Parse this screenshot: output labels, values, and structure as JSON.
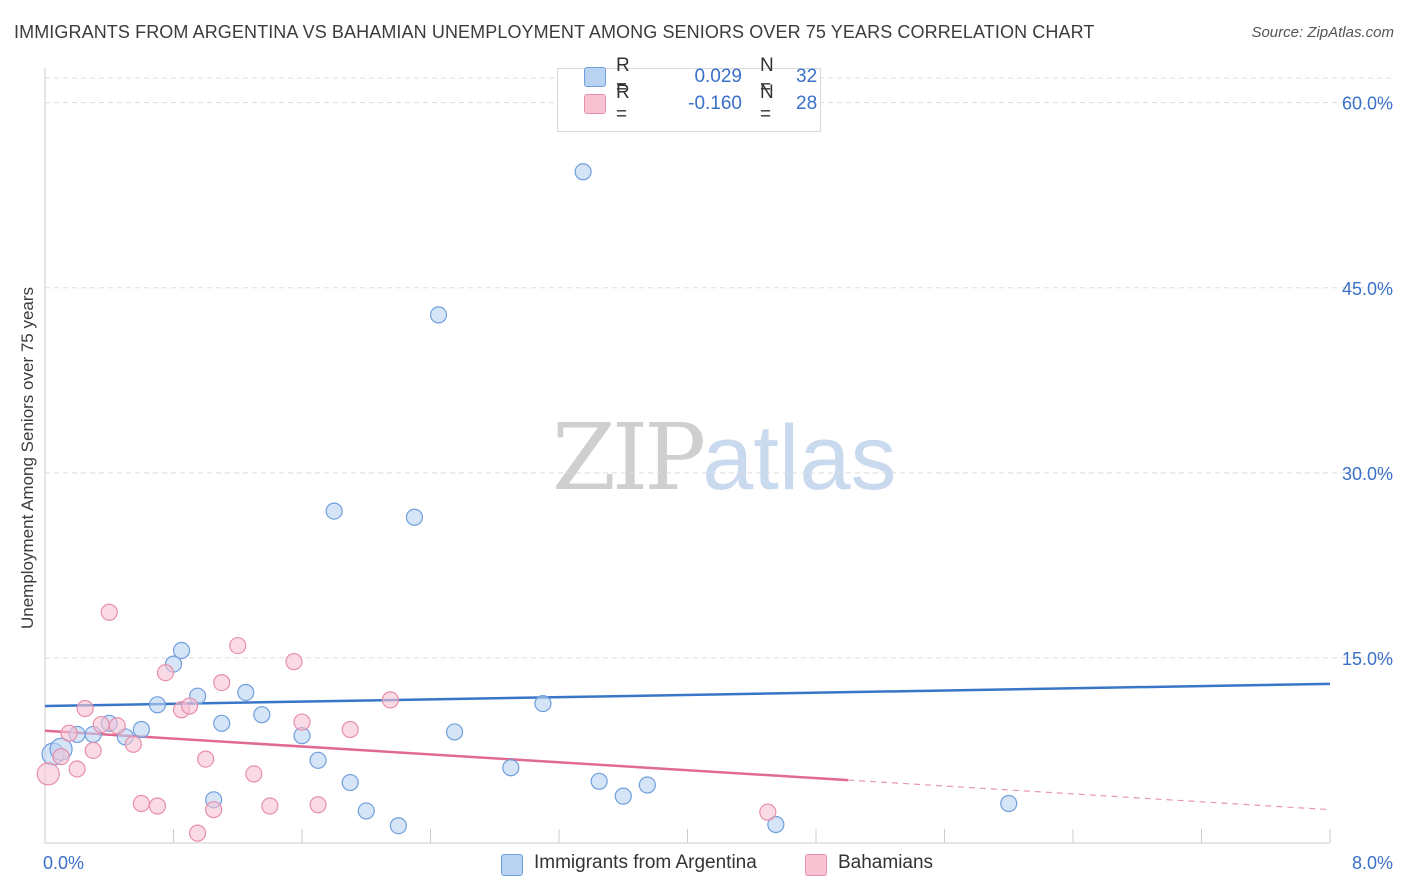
{
  "header": {
    "title": "IMMIGRANTS FROM ARGENTINA VS BAHAMIAN UNEMPLOYMENT AMONG SENIORS OVER 75 YEARS CORRELATION CHART",
    "source": "Source: ZipAtlas.com"
  },
  "watermark": {
    "zip": "ZIP",
    "atlas": "atlas"
  },
  "legend": {
    "series": [
      {
        "r_label": "R =",
        "r_value": "0.029",
        "n_label": "N =",
        "n_value": "32"
      },
      {
        "r_label": "R =",
        "r_value": "-0.160",
        "n_label": "N =",
        "n_value": "28"
      }
    ]
  },
  "colors": {
    "blue_fill": "#b9d2f2",
    "blue_stroke": "#6f9fdc",
    "blue_line": "#3a76c8",
    "pink_fill": "#f7c3d3",
    "pink_stroke": "#e78fab",
    "pink_line": "#e06a93",
    "grid": "#dddddd",
    "tick_label": "#3a70c8"
  },
  "chart_data": {
    "type": "scatter",
    "title": "IMMIGRANTS FROM ARGENTINA VS BAHAMIAN UNEMPLOYMENT AMONG SENIORS OVER 75 YEARS CORRELATION CHART",
    "xlabel": "",
    "ylabel": "Unemployment Among Seniors over 75 years",
    "xlim": [
      0,
      8
    ],
    "ylim": [
      0,
      62
    ],
    "x_tick_labels": [
      "0.0%",
      "8.0%"
    ],
    "y_ticks": [
      15,
      30,
      45,
      60
    ],
    "y_tick_labels": [
      "15.0%",
      "30.0%",
      "45.0%",
      "60.0%"
    ],
    "grid": true,
    "legend_position": "top-center",
    "series": [
      {
        "name": "Immigrants from Argentina",
        "color": "blue",
        "R": 0.029,
        "N": 32,
        "trend": {
          "x": [
            0,
            8
          ],
          "y": [
            11.1,
            12.9
          ],
          "dashed_after": null
        },
        "points": [
          [
            0.05,
            7.2
          ],
          [
            0.1,
            7.6
          ],
          [
            0.2,
            8.8
          ],
          [
            0.3,
            8.8
          ],
          [
            0.4,
            9.7
          ],
          [
            0.5,
            8.6
          ],
          [
            0.6,
            9.2
          ],
          [
            0.7,
            11.2
          ],
          [
            0.8,
            14.5
          ],
          [
            0.85,
            15.6
          ],
          [
            0.95,
            11.9
          ],
          [
            1.05,
            3.5
          ],
          [
            1.1,
            9.7
          ],
          [
            1.25,
            12.2
          ],
          [
            1.35,
            10.4
          ],
          [
            1.6,
            8.7
          ],
          [
            1.7,
            6.7
          ],
          [
            1.8,
            26.9
          ],
          [
            1.9,
            4.9
          ],
          [
            2.0,
            2.6
          ],
          [
            2.2,
            1.4
          ],
          [
            2.3,
            26.4
          ],
          [
            2.45,
            42.8
          ],
          [
            2.55,
            9.0
          ],
          [
            2.9,
            6.1
          ],
          [
            3.1,
            11.3
          ],
          [
            3.35,
            54.4
          ],
          [
            3.45,
            5.0
          ],
          [
            3.6,
            3.8
          ],
          [
            3.75,
            4.7
          ],
          [
            4.55,
            1.5
          ],
          [
            6.0,
            3.2
          ]
        ]
      },
      {
        "name": "Bahamians",
        "color": "pink",
        "R": -0.16,
        "N": 28,
        "trend": {
          "x": [
            0,
            8
          ],
          "y": [
            9.1,
            2.7
          ],
          "dashed_after": 5.0
        },
        "points": [
          [
            0.02,
            5.6
          ],
          [
            0.1,
            7.0
          ],
          [
            0.15,
            8.9
          ],
          [
            0.2,
            6.0
          ],
          [
            0.25,
            10.9
          ],
          [
            0.3,
            7.5
          ],
          [
            0.35,
            9.6
          ],
          [
            0.4,
            18.7
          ],
          [
            0.45,
            9.5
          ],
          [
            0.55,
            8.0
          ],
          [
            0.6,
            3.2
          ],
          [
            0.7,
            3.0
          ],
          [
            0.75,
            13.8
          ],
          [
            0.85,
            10.8
          ],
          [
            0.9,
            11.1
          ],
          [
            0.95,
            0.8
          ],
          [
            1.0,
            6.8
          ],
          [
            1.05,
            2.7
          ],
          [
            1.1,
            13.0
          ],
          [
            1.2,
            16.0
          ],
          [
            1.3,
            5.6
          ],
          [
            1.4,
            3.0
          ],
          [
            1.55,
            14.7
          ],
          [
            1.6,
            9.8
          ],
          [
            1.7,
            3.1
          ],
          [
            1.9,
            9.2
          ],
          [
            2.15,
            11.6
          ],
          [
            4.5,
            2.5
          ]
        ]
      }
    ]
  },
  "bottom_legend": {
    "items": [
      {
        "label": "Immigrants from Argentina"
      },
      {
        "label": "Bahamians"
      }
    ]
  }
}
